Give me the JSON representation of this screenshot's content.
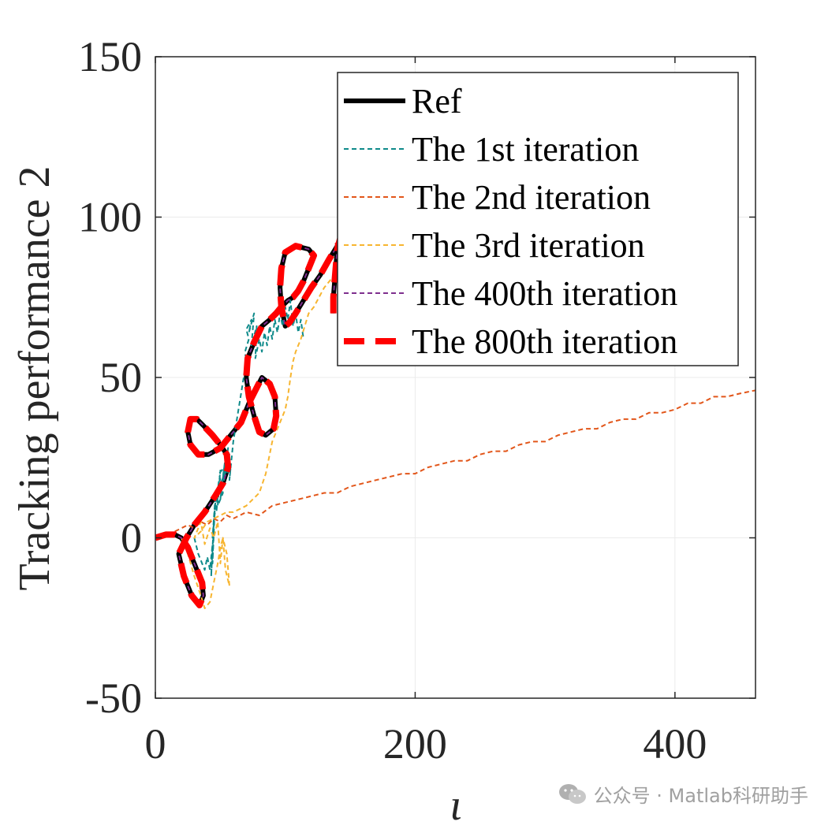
{
  "colors": {
    "ref": "#000000",
    "iter1": "#0e8a8a",
    "iter2": "#e2561a",
    "iter3": "#f7b530",
    "iter400": "#7e2f8e",
    "iter800": "#ff0000",
    "grid": "#ebebeb",
    "axis": "#262626"
  },
  "chart_data": {
    "type": "line",
    "xlabel": "ι",
    "ylabel": "Tracking performance 2",
    "xlim": [
      0,
      462
    ],
    "ylim": [
      -50,
      150
    ],
    "xticks": [
      0,
      200,
      400
    ],
    "yticks": [
      -50,
      0,
      50,
      100,
      150
    ],
    "xtick_labels": [
      "0",
      "200",
      "400"
    ],
    "ytick_labels": [
      "-50",
      "0",
      "50",
      "100",
      "150"
    ],
    "grid": true,
    "legend_position": "top-right",
    "series": [
      {
        "name": "Ref",
        "style": "solid",
        "color_key": "ref",
        "x": [
          0,
          8,
          15,
          20,
          25,
          28,
          32,
          36,
          37,
          34,
          28,
          22,
          18,
          24,
          30,
          38,
          46,
          52,
          56,
          55,
          50,
          44,
          37,
          32,
          27,
          25,
          27,
          33,
          41,
          50,
          58,
          66,
          72,
          77,
          82,
          88,
          92,
          93,
          91,
          85,
          80,
          76,
          72,
          70,
          71,
          76,
          82,
          88,
          93,
          97,
          102,
          106,
          110,
          114,
          117,
          120,
          122,
          118,
          108,
          100,
          97,
          96,
          97,
          99,
          100,
          103,
          108,
          114,
          120,
          127,
          134,
          140,
          143,
          142,
          140,
          139,
          138,
          137,
          137
        ],
        "y": [
          0,
          1,
          1,
          0,
          -3,
          -6,
          -10,
          -14,
          -18,
          -21,
          -18,
          -12,
          -5,
          0,
          4,
          8,
          13,
          17,
          22,
          26,
          29,
          32,
          35,
          37,
          37,
          33,
          29,
          26,
          26,
          28,
          32,
          36,
          42,
          46,
          50,
          48,
          44,
          38,
          34,
          32,
          33,
          38,
          44,
          50,
          56,
          61,
          66,
          68,
          70,
          72,
          74,
          75,
          77,
          80,
          83,
          86,
          88,
          90,
          91,
          89,
          84,
          78,
          72,
          68,
          66,
          67,
          70,
          74,
          78,
          82,
          87,
          91,
          93,
          93,
          90,
          85,
          80,
          75,
          70
        ]
      },
      {
        "name": "The 1st iteration",
        "style": "dotted",
        "color_key": "iter1",
        "x": [
          30,
          33,
          36,
          38,
          40,
          42,
          44,
          43,
          45,
          44,
          46,
          44,
          47,
          45,
          49,
          47,
          50,
          48,
          52,
          49,
          53,
          50,
          54,
          51,
          56,
          53,
          57,
          55,
          58,
          57,
          60,
          62,
          64,
          66,
          68,
          70,
          69,
          72,
          70,
          74,
          72,
          76,
          74,
          78,
          77,
          80,
          82,
          84,
          86,
          88,
          90,
          92,
          94,
          96,
          98,
          100,
          102,
          104,
          106,
          108,
          110,
          112,
          114
        ],
        "y": [
          0,
          -5,
          -8,
          -10,
          -6,
          -10,
          -2,
          -12,
          5,
          -8,
          12,
          0,
          15,
          5,
          18,
          8,
          21,
          10,
          14,
          20,
          22,
          12,
          25,
          16,
          28,
          18,
          26,
          20,
          22,
          18,
          30,
          35,
          40,
          45,
          50,
          55,
          58,
          62,
          65,
          68,
          64,
          70,
          60,
          66,
          56,
          62,
          58,
          64,
          60,
          66,
          62,
          68,
          64,
          70,
          66,
          72,
          68,
          74,
          66,
          70,
          64,
          68,
          62
        ]
      },
      {
        "name": "The 2nd iteration",
        "style": "dotted",
        "color_key": "iter2",
        "x": [
          15,
          20,
          25,
          30,
          35,
          40,
          45,
          50,
          55,
          60,
          70,
          80,
          90,
          100,
          110,
          120,
          130,
          140,
          150,
          160,
          170,
          180,
          190,
          200,
          210,
          220,
          230,
          240,
          250,
          260,
          270,
          280,
          290,
          300,
          310,
          320,
          330,
          340,
          350,
          360,
          370,
          380,
          390,
          400,
          410,
          420,
          430,
          440,
          450,
          462
        ],
        "y": [
          2,
          3,
          4,
          3,
          5,
          4,
          6,
          5,
          7,
          6,
          8,
          7,
          10,
          11,
          12,
          13,
          14,
          14,
          16,
          17,
          18,
          19,
          20,
          20,
          22,
          23,
          24,
          24,
          26,
          27,
          27,
          29,
          30,
          30,
          32,
          33,
          34,
          34,
          36,
          37,
          37,
          39,
          39,
          40,
          42,
          42,
          44,
          44,
          45,
          46
        ]
      },
      {
        "name": "The 3rd iteration",
        "style": "dotted",
        "color_key": "iter3",
        "x": [
          20,
          25,
          30,
          35,
          38,
          42,
          45,
          48,
          50,
          52,
          54,
          57,
          55,
          52,
          50,
          48,
          45,
          42,
          38,
          35,
          32,
          30,
          35,
          40,
          45,
          50,
          55,
          60,
          65,
          70,
          75,
          80,
          85,
          90,
          95,
          100,
          102,
          104,
          106,
          108,
          110,
          112,
          115,
          118,
          122,
          126,
          130,
          134,
          138
        ],
        "y": [
          0,
          -5,
          -12,
          -18,
          -22,
          -20,
          -14,
          -8,
          -3,
          0,
          -10,
          -15,
          -5,
          0,
          -8,
          5,
          0,
          3,
          -2,
          5,
          2,
          0,
          2,
          5,
          6,
          7,
          8,
          8,
          9,
          10,
          12,
          14,
          20,
          30,
          35,
          40,
          44,
          50,
          55,
          58,
          60,
          62,
          66,
          70,
          72,
          75,
          78,
          80,
          82
        ]
      },
      {
        "name": "The 400th iteration",
        "style": "dotted",
        "color_key": "iter400",
        "x": [
          0,
          8,
          15,
          20,
          25,
          28,
          32,
          36,
          37,
          34,
          28,
          22,
          18,
          24,
          30,
          38,
          46,
          52,
          56,
          55,
          50,
          44,
          37,
          32,
          27,
          25,
          27,
          33,
          41,
          50,
          58,
          66,
          72,
          77,
          82,
          88,
          92,
          93,
          91,
          85,
          80,
          76,
          72,
          70,
          71,
          76,
          82,
          88,
          93,
          97,
          102,
          106,
          110,
          114,
          117,
          120,
          122,
          118,
          108,
          100,
          97,
          96,
          97,
          99,
          100,
          103,
          108,
          114,
          120,
          127,
          134,
          140,
          143,
          142,
          140,
          139,
          138,
          137,
          137
        ],
        "y": [
          0,
          1,
          1,
          0,
          -3,
          -6,
          -10,
          -14,
          -18,
          -21,
          -18,
          -12,
          -5,
          0,
          4,
          8,
          13,
          17,
          22,
          26,
          29,
          32,
          35,
          37,
          37,
          33,
          29,
          26,
          26,
          28,
          32,
          36,
          42,
          46,
          50,
          48,
          44,
          38,
          34,
          32,
          33,
          38,
          44,
          50,
          56,
          61,
          66,
          68,
          70,
          72,
          74,
          75,
          77,
          80,
          83,
          86,
          88,
          90,
          91,
          89,
          84,
          78,
          72,
          68,
          66,
          67,
          70,
          74,
          78,
          82,
          87,
          91,
          93,
          93,
          90,
          85,
          80,
          75,
          70
        ]
      },
      {
        "name": "The 800th iteration",
        "style": "dashed",
        "color_key": "iter800",
        "x": [
          0,
          8,
          15,
          20,
          25,
          28,
          32,
          36,
          37,
          34,
          28,
          22,
          18,
          24,
          30,
          38,
          46,
          52,
          56,
          55,
          50,
          44,
          37,
          32,
          27,
          25,
          27,
          33,
          41,
          50,
          58,
          66,
          72,
          77,
          82,
          88,
          92,
          93,
          91,
          85,
          80,
          76,
          72,
          70,
          71,
          76,
          82,
          88,
          93,
          97,
          102,
          106,
          110,
          114,
          117,
          120,
          122,
          118,
          108,
          100,
          97,
          96,
          97,
          99,
          100,
          103,
          108,
          114,
          120,
          127,
          134,
          140,
          143,
          142,
          140,
          139,
          138,
          137,
          137
        ],
        "y": [
          0,
          1,
          1,
          0,
          -3,
          -6,
          -10,
          -14,
          -18,
          -21,
          -18,
          -12,
          -5,
          0,
          4,
          8,
          13,
          17,
          22,
          26,
          29,
          32,
          35,
          37,
          37,
          33,
          29,
          26,
          26,
          28,
          32,
          36,
          42,
          46,
          50,
          48,
          44,
          38,
          34,
          32,
          33,
          38,
          44,
          50,
          56,
          61,
          66,
          68,
          70,
          72,
          74,
          75,
          77,
          80,
          83,
          86,
          88,
          90,
          91,
          89,
          84,
          78,
          72,
          68,
          66,
          67,
          70,
          74,
          78,
          82,
          87,
          91,
          93,
          93,
          90,
          85,
          80,
          75,
          70
        ]
      }
    ]
  },
  "watermark": {
    "text": "公众号 · Matlab科研助手",
    "icon": "wechat-icon"
  }
}
